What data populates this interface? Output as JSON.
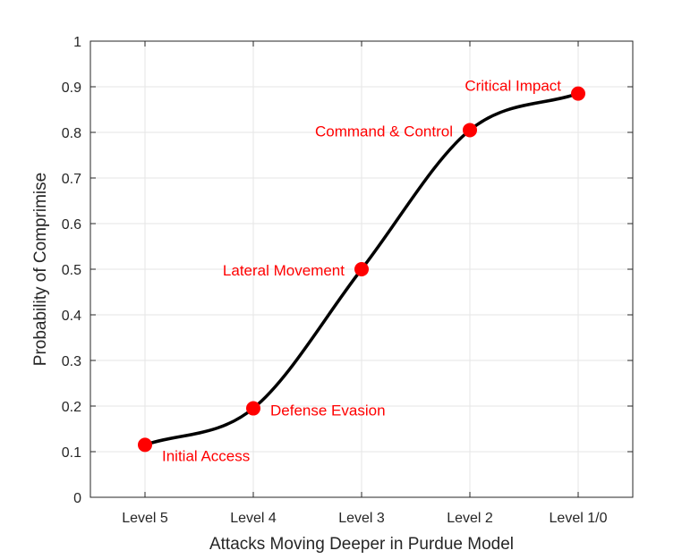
{
  "chart_data": {
    "type": "line",
    "title": "",
    "xlabel": "Attacks Moving Deeper in Purdue Model",
    "ylabel": "Probability of Comprimise",
    "categories": [
      "Level 5",
      "Level 4",
      "Level 3",
      "Level 2",
      "Level 1/0"
    ],
    "ylim": [
      0,
      1
    ],
    "yticks": [
      "0",
      "0.1",
      "0.2",
      "0.3",
      "0.4",
      "0.5",
      "0.6",
      "0.7",
      "0.8",
      "0.9",
      "1"
    ],
    "grid": true,
    "points": [
      {
        "x": "Level 5",
        "y": 0.115,
        "label": "Initial Access"
      },
      {
        "x": "Level 4",
        "y": 0.195,
        "label": "Defense Evasion"
      },
      {
        "x": "Level 3",
        "y": 0.5,
        "label": "Lateral Movement"
      },
      {
        "x": "Level 2",
        "y": 0.805,
        "label": "Command & Control"
      },
      {
        "x": "Level 1/0",
        "y": 0.885,
        "label": "Critical Impact"
      }
    ],
    "colors": {
      "curve": "#000000",
      "markers": "#ff0000",
      "labels": "#ff0000",
      "grid": "#e6e6e6",
      "axis": "#262626"
    }
  }
}
